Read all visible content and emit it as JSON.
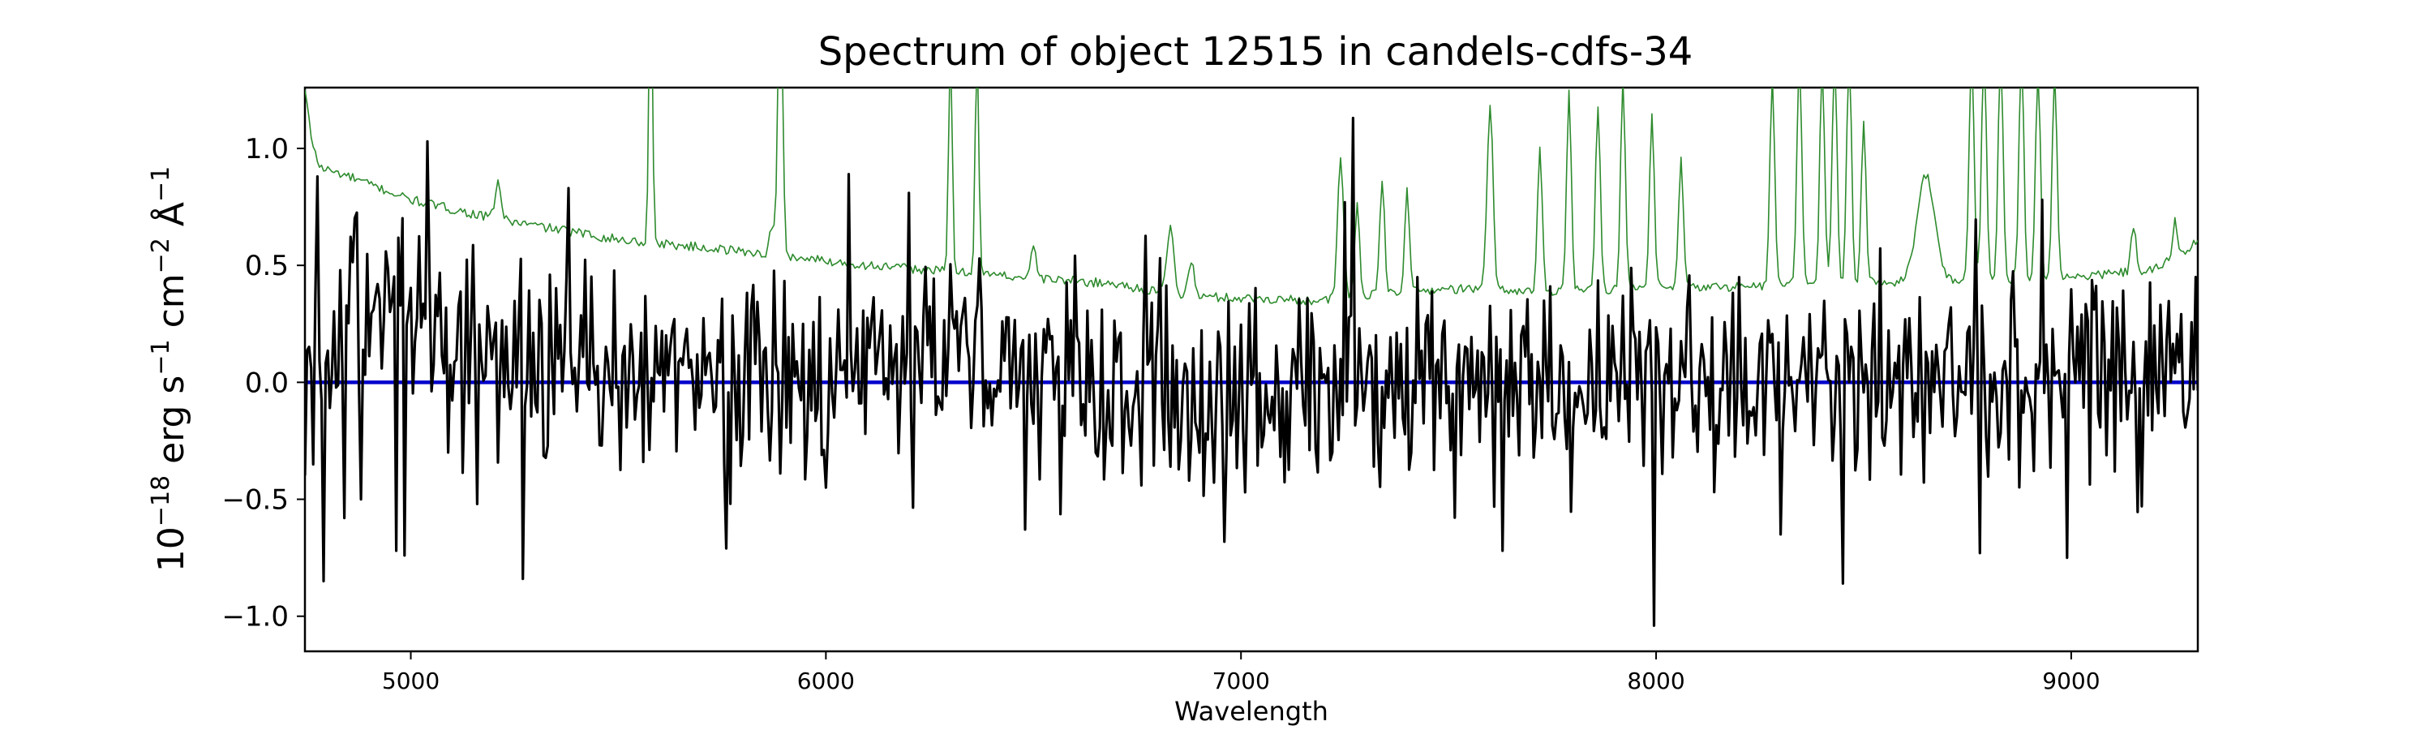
{
  "chart_data": {
    "type": "line",
    "title": "Spectrum of object 12515 in candels-cdfs-34",
    "xlabel": "Wavelength",
    "ylabel": {
      "parts": [
        "10",
        "−18",
        " erg s",
        "−1",
        " cm",
        "−2",
        " Å",
        "−1"
      ]
    },
    "xlim": [
      4745,
      9305
    ],
    "ylim": [
      -1.15,
      1.26
    ],
    "xticks": [
      5000,
      6000,
      7000,
      8000,
      9000
    ],
    "xtick_labels": [
      "5000",
      "6000",
      "7000",
      "8000",
      "9000"
    ],
    "yticks": [
      1.0,
      0.5,
      0.0,
      -0.5,
      -1.0
    ],
    "ytick_labels": [
      "1.0",
      "0.5",
      "0.0",
      "−0.5",
      "−1.0"
    ],
    "grid": false,
    "legend": "none",
    "series": [
      {
        "role": "uncertainty",
        "color": "#2e8b2e",
        "step": 5,
        "x_start": 4745,
        "x_end": 9305,
        "smooth_points": {
          "x": [
            4745,
            4760,
            4780,
            4850,
            5000,
            5200,
            5500,
            5800,
            6100,
            6400,
            6700,
            6850,
            7000,
            7200,
            7300,
            7500,
            7700,
            8000,
            8200,
            8400,
            8600,
            8800,
            9000,
            9200,
            9305
          ],
          "y": [
            1.25,
            1.05,
            0.92,
            0.88,
            0.78,
            0.7,
            0.61,
            0.56,
            0.5,
            0.46,
            0.42,
            0.37,
            0.36,
            0.35,
            0.37,
            0.4,
            0.39,
            0.4,
            0.41,
            0.42,
            0.43,
            0.44,
            0.45,
            0.48,
            0.6
          ]
        },
        "spikes": [
          {
            "x": 5210,
            "h": 0.16,
            "w": 10
          },
          {
            "x": 5578,
            "h": 1.2,
            "w": 6
          },
          {
            "x": 5890,
            "h": 1.2,
            "w": 8
          },
          {
            "x": 5870,
            "h": 0.12,
            "w": 8
          },
          {
            "x": 6300,
            "h": 1.0,
            "w": 6
          },
          {
            "x": 6364,
            "h": 1.0,
            "w": 6
          },
          {
            "x": 6500,
            "h": 0.12,
            "w": 10
          },
          {
            "x": 6830,
            "h": 0.28,
            "w": 12
          },
          {
            "x": 6880,
            "h": 0.15,
            "w": 10
          },
          {
            "x": 7240,
            "h": 0.6,
            "w": 10
          },
          {
            "x": 7280,
            "h": 0.4,
            "w": 8
          },
          {
            "x": 7340,
            "h": 0.5,
            "w": 8
          },
          {
            "x": 7400,
            "h": 0.45,
            "w": 8
          },
          {
            "x": 7600,
            "h": 0.8,
            "w": 10
          },
          {
            "x": 7720,
            "h": 0.6,
            "w": 8
          },
          {
            "x": 7790,
            "h": 0.85,
            "w": 8
          },
          {
            "x": 7860,
            "h": 0.8,
            "w": 8
          },
          {
            "x": 7920,
            "h": 0.9,
            "w": 8
          },
          {
            "x": 7990,
            "h": 0.75,
            "w": 8
          },
          {
            "x": 8060,
            "h": 0.55,
            "w": 8
          },
          {
            "x": 8280,
            "h": 0.9,
            "w": 8
          },
          {
            "x": 8345,
            "h": 1.0,
            "w": 8
          },
          {
            "x": 8400,
            "h": 0.95,
            "w": 8
          },
          {
            "x": 8430,
            "h": 1.0,
            "w": 8
          },
          {
            "x": 8465,
            "h": 1.0,
            "w": 8
          },
          {
            "x": 8500,
            "h": 0.7,
            "w": 8
          },
          {
            "x": 8650,
            "h": 0.45,
            "w": 30
          },
          {
            "x": 8760,
            "h": 1.0,
            "w": 8
          },
          {
            "x": 8790,
            "h": 1.0,
            "w": 8
          },
          {
            "x": 8830,
            "h": 1.0,
            "w": 8
          },
          {
            "x": 8880,
            "h": 1.0,
            "w": 8
          },
          {
            "x": 8920,
            "h": 0.9,
            "w": 8
          },
          {
            "x": 8960,
            "h": 0.9,
            "w": 8
          },
          {
            "x": 9150,
            "h": 0.2,
            "w": 8
          },
          {
            "x": 9250,
            "h": 0.15,
            "w": 8
          }
        ],
        "noise_amp": 0.02
      },
      {
        "role": "model",
        "color": "#0000cc",
        "x": [
          4745,
          9305
        ],
        "y": [
          0.0,
          0.0
        ]
      },
      {
        "role": "flux",
        "color": "#000000",
        "step": 5,
        "x_start": 4745,
        "x_end": 9305,
        "baseline": {
          "x": [
            4745,
            4800,
            4900,
            5100,
            5500,
            6000,
            6200,
            6600,
            7000,
            7500,
            8000,
            8500,
            9000,
            9305
          ],
          "y": [
            0.05,
            0.25,
            0.3,
            0.15,
            0.05,
            0.0,
            0.05,
            0.03,
            0.0,
            0.02,
            0.0,
            0.0,
            0.02,
            0.05
          ]
        },
        "noise_sigma": 0.22,
        "seed": 12515,
        "features": [
          {
            "x": 4790,
            "y": -0.85
          },
          {
            "x": 4775,
            "y": 0.88
          },
          {
            "x": 4840,
            "y": -0.58
          },
          {
            "x": 4880,
            "y": -0.5
          },
          {
            "x": 4965,
            "y": -0.72
          },
          {
            "x": 4985,
            "y": -0.74
          },
          {
            "x": 5040,
            "y": 1.03
          },
          {
            "x": 5270,
            "y": -0.84
          },
          {
            "x": 5160,
            "y": -0.52
          },
          {
            "x": 5380,
            "y": 0.83
          },
          {
            "x": 5760,
            "y": -0.71
          },
          {
            "x": 6055,
            "y": 0.89
          },
          {
            "x": 6200,
            "y": 0.81
          },
          {
            "x": 6000,
            "y": -0.45
          },
          {
            "x": 6875,
            "y": -0.42
          },
          {
            "x": 7270,
            "y": 1.13
          },
          {
            "x": 7250,
            "y": 0.77
          },
          {
            "x": 7630,
            "y": -0.72
          },
          {
            "x": 7995,
            "y": -1.04
          },
          {
            "x": 8300,
            "y": -0.65
          },
          {
            "x": 8450,
            "y": -0.86
          },
          {
            "x": 8780,
            "y": -0.73
          },
          {
            "x": 8990,
            "y": -0.75
          },
          {
            "x": 9170,
            "y": -0.53
          },
          {
            "x": 8930,
            "y": 0.78
          }
        ]
      }
    ]
  }
}
